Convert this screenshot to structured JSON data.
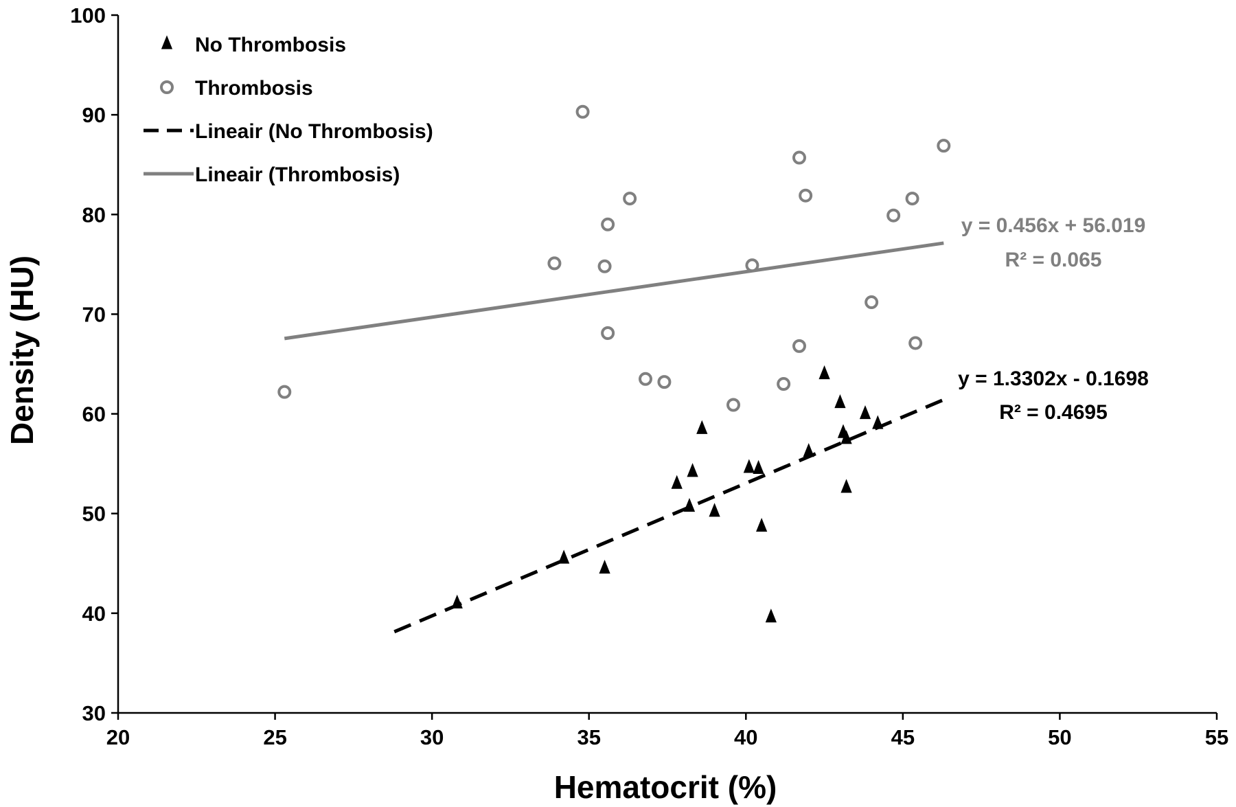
{
  "chart_data": {
    "type": "scatter",
    "title": "",
    "xlabel": "Hematocrit (%)",
    "ylabel": "Density (HU)",
    "xlim": [
      20,
      55
    ],
    "ylim": [
      30,
      100
    ],
    "xticks": [
      20,
      25,
      30,
      35,
      40,
      45,
      50,
      55
    ],
    "yticks": [
      30,
      40,
      50,
      60,
      70,
      80,
      90,
      100
    ],
    "grid": false,
    "legend_position": "top-left",
    "series": [
      {
        "name": "No Thrombosis",
        "marker": "triangle",
        "color": "#000000",
        "points": [
          [
            30.8,
            41.0
          ],
          [
            34.2,
            45.5
          ],
          [
            35.5,
            44.5
          ],
          [
            37.8,
            53.0
          ],
          [
            38.2,
            50.7
          ],
          [
            38.3,
            54.2
          ],
          [
            38.6,
            58.5
          ],
          [
            39.0,
            50.2
          ],
          [
            40.1,
            54.6
          ],
          [
            40.4,
            54.5
          ],
          [
            40.5,
            48.7
          ],
          [
            40.8,
            39.6
          ],
          [
            42.0,
            56.2
          ],
          [
            42.5,
            64.0
          ],
          [
            43.0,
            61.1
          ],
          [
            43.1,
            58.1
          ],
          [
            43.2,
            57.5
          ],
          [
            43.2,
            52.6
          ],
          [
            43.8,
            60.0
          ],
          [
            44.2,
            59.0
          ]
        ]
      },
      {
        "name": "Thrombosis",
        "marker": "circle-open",
        "color": "#808080",
        "points": [
          [
            25.3,
            62.2
          ],
          [
            33.9,
            75.1
          ],
          [
            34.8,
            90.3
          ],
          [
            35.5,
            74.8
          ],
          [
            35.6,
            79.0
          ],
          [
            35.6,
            68.1
          ],
          [
            36.3,
            81.6
          ],
          [
            36.8,
            63.5
          ],
          [
            37.4,
            63.2
          ],
          [
            39.6,
            60.9
          ],
          [
            40.2,
            74.9
          ],
          [
            41.2,
            63.0
          ],
          [
            41.7,
            85.7
          ],
          [
            41.7,
            66.8
          ],
          [
            41.9,
            81.9
          ],
          [
            44.0,
            71.2
          ],
          [
            44.7,
            79.9
          ],
          [
            45.3,
            81.6
          ],
          [
            45.4,
            67.1
          ],
          [
            46.3,
            86.9
          ]
        ]
      }
    ],
    "trendlines": [
      {
        "name": "Lineair (No Thrombosis)",
        "style": "dashed",
        "color": "#000000",
        "slope": 1.3302,
        "intercept": -0.1698,
        "x_range": [
          28.8,
          46.3
        ],
        "equation": "y = 1.3302x - 0.1698",
        "r_squared": "R² = 0.4695"
      },
      {
        "name": "Lineair (Thrombosis)",
        "style": "solid",
        "color": "#808080",
        "slope": 0.456,
        "intercept": 56.019,
        "x_range": [
          25.3,
          46.3
        ],
        "equation": "y = 0.456x + 56.019",
        "r_squared": "R² = 0.065"
      }
    ]
  }
}
